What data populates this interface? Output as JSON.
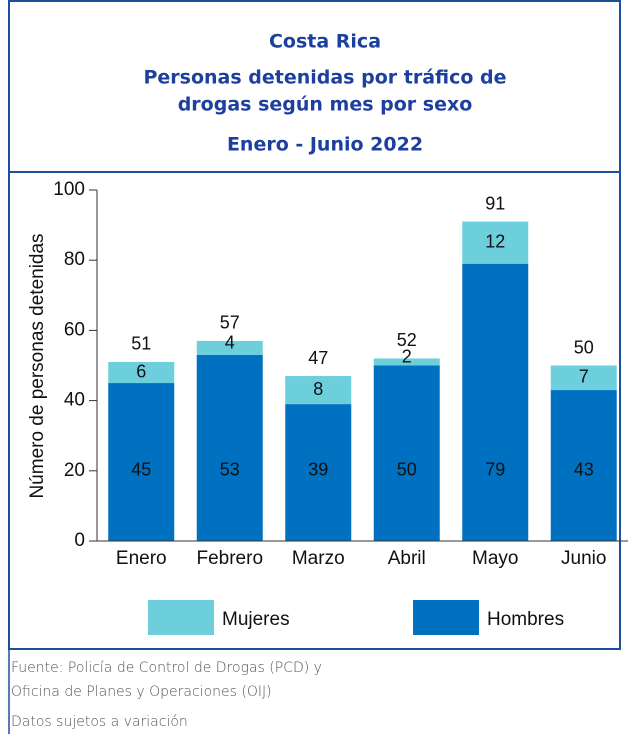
{
  "chart_data": {
    "type": "stacked_bar",
    "title": [
      "Costa Rica",
      "Personas detenidas  por tráfico de",
      "drogas según mes por sexo"
    ],
    "subtitle": "Enero - Junio 2022",
    "ylabel": "Número de personas detenidas",
    "categories": [
      "Enero",
      "Febrero",
      "Marzo",
      "Abril",
      "Mayo",
      "Junio"
    ],
    "series": [
      {
        "name": "Hombres",
        "color": "#0070c0",
        "values": [
          45,
          53,
          39,
          50,
          79,
          43
        ]
      },
      {
        "name": "Mujeres",
        "color": "#6dcfdc",
        "values": [
          6,
          4,
          8,
          2,
          12,
          7
        ]
      }
    ],
    "totals": [
      51,
      57,
      47,
      52,
      91,
      50
    ],
    "ylim": [
      0,
      100
    ],
    "yticks": [
      0,
      20,
      40,
      60,
      80,
      100
    ]
  },
  "notes": [
    "Fuente: Policía de Control de Drogas (PCD) y",
    "Oficina de Planes y Operaciones (OIJ)",
    "Datos sujetos a variación"
  ]
}
